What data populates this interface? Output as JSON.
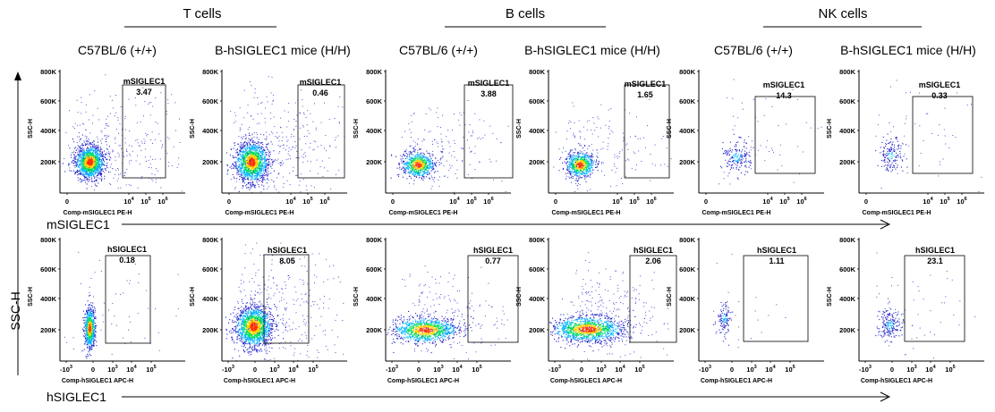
{
  "groups": [
    {
      "label": "T cells"
    },
    {
      "label": "B cells"
    },
    {
      "label": "NK cells"
    }
  ],
  "columns": [
    {
      "label": "C57BL/6 (+/+)"
    },
    {
      "label": "B-hSIGLEC1 mice  (H/H)"
    },
    {
      "label": "C57BL/6 (+/+)"
    },
    {
      "label": "B-hSIGLEC1 mice (H/H)"
    },
    {
      "label": "C57BL/6 (+/+)"
    },
    {
      "label": "B-hSIGLEC1 mice (H/H)"
    }
  ],
  "axis_labels": {
    "y": "SSC-H",
    "row1": "mSIGLEC1",
    "row2": "hSIGLEC1"
  },
  "chart_data": {
    "type": "scatter",
    "plot_kind": "flow cytometry density dot plots",
    "rows": [
      {
        "marker": "mSIGLEC1",
        "x_title": "Comp-mSIGLEC1 PE-H",
        "y_title": "SSC-H",
        "y_ticks": [
          "200K",
          "400K",
          "600K",
          "800K"
        ],
        "x_ticks": [
          {
            "base": "0"
          },
          {
            "base": "10",
            "exp": "4"
          },
          {
            "base": "10",
            "exp": "5"
          },
          {
            "base": "10",
            "exp": "6"
          }
        ]
      },
      {
        "marker": "hSIGLEC1",
        "x_title": "Comp-hSIGLEC1 APC-H",
        "y_title": "SSC-H",
        "y_ticks": [
          "200K",
          "400K",
          "600K",
          "800K"
        ],
        "x_ticks": [
          {
            "base": "-10",
            "exp": "3"
          },
          {
            "base": "0"
          },
          {
            "base": "10",
            "exp": "3"
          },
          {
            "base": "10",
            "exp": "4"
          },
          {
            "base": "10",
            "exp": "5"
          }
        ]
      }
    ],
    "panels": [
      {
        "row": 0,
        "col": 0,
        "cells": "T cells",
        "strain": "C57BL/6 (+/+)",
        "gate": "mSIGLEC1",
        "percent": "3.47"
      },
      {
        "row": 0,
        "col": 1,
        "cells": "T cells",
        "strain": "B-hSIGLEC1 mice (H/H)",
        "gate": "mSIGLEC1",
        "percent": "0.46"
      },
      {
        "row": 0,
        "col": 2,
        "cells": "B cells",
        "strain": "C57BL/6 (+/+)",
        "gate": "mSIGLEC1",
        "percent": "3.88"
      },
      {
        "row": 0,
        "col": 3,
        "cells": "B cells",
        "strain": "B-hSIGLEC1 mice (H/H)",
        "gate": "mSIGLEC1",
        "percent": "1.65"
      },
      {
        "row": 0,
        "col": 4,
        "cells": "NK cells",
        "strain": "C57BL/6 (+/+)",
        "gate": "mSIGLEC1",
        "percent": "14.3"
      },
      {
        "row": 0,
        "col": 5,
        "cells": "NK cells",
        "strain": "B-hSIGLEC1 mice (H/H)",
        "gate": "mSIGLEC1",
        "percent": "0.33"
      },
      {
        "row": 1,
        "col": 0,
        "cells": "T cells",
        "strain": "C57BL/6 (+/+)",
        "gate": "hSIGLEC1",
        "percent": "0.18"
      },
      {
        "row": 1,
        "col": 1,
        "cells": "T cells",
        "strain": "B-hSIGLEC1 mice (H/H)",
        "gate": "hSIGLEC1",
        "percent": "8.05"
      },
      {
        "row": 1,
        "col": 2,
        "cells": "B cells",
        "strain": "C57BL/6 (+/+)",
        "gate": "hSIGLEC1",
        "percent": "0.77"
      },
      {
        "row": 1,
        "col": 3,
        "cells": "B cells",
        "strain": "B-hSIGLEC1 mice (H/H)",
        "gate": "hSIGLEC1",
        "percent": "2.06"
      },
      {
        "row": 1,
        "col": 4,
        "cells": "NK cells",
        "strain": "C57BL/6 (+/+)",
        "gate": "hSIGLEC1",
        "percent": "1.11"
      },
      {
        "row": 1,
        "col": 5,
        "cells": "NK cells",
        "strain": "B-hSIGLEC1 mice (H/H)",
        "gate": "hSIGLEC1",
        "percent": "23.1"
      }
    ],
    "density_colors": [
      "#2020c8",
      "#00b4ff",
      "#00e060",
      "#ffd000",
      "#ff3000"
    ]
  }
}
